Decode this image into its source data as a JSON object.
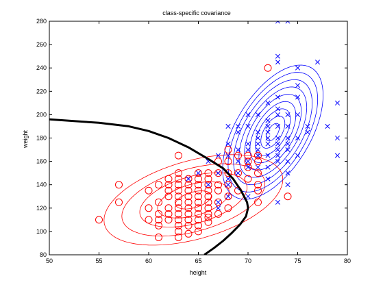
{
  "chart_data": {
    "type": "scatter",
    "title": "class-specific covariance",
    "xlabel": "height",
    "ylabel": "weight",
    "xlim": [
      50,
      80
    ],
    "ylim": [
      80,
      280
    ],
    "xticks": [
      50,
      55,
      60,
      65,
      70,
      75,
      80
    ],
    "yticks": [
      80,
      100,
      120,
      140,
      160,
      180,
      200,
      220,
      240,
      260,
      280
    ],
    "grid": false,
    "legend": "none",
    "colors": {
      "female": "#ff0000",
      "male": "#0000ff",
      "boundary": "#000000"
    },
    "series": [
      {
        "marker": "circle",
        "color": "#ff0000",
        "points": [
          [
            55,
            110
          ],
          [
            57,
            125
          ],
          [
            57,
            140
          ],
          [
            60,
            110
          ],
          [
            60,
            120
          ],
          [
            60,
            135
          ],
          [
            61,
            95
          ],
          [
            61,
            105
          ],
          [
            61,
            110
          ],
          [
            61,
            115
          ],
          [
            61,
            125
          ],
          [
            61,
            140
          ],
          [
            62,
            110
          ],
          [
            62,
            115
          ],
          [
            62,
            120
          ],
          [
            62,
            130
          ],
          [
            62,
            135
          ],
          [
            62,
            140
          ],
          [
            62,
            145
          ],
          [
            63,
            95
          ],
          [
            63,
            100
          ],
          [
            63,
            105
          ],
          [
            63,
            110
          ],
          [
            63,
            115
          ],
          [
            63,
            120
          ],
          [
            63,
            125
          ],
          [
            63,
            130
          ],
          [
            63,
            135
          ],
          [
            63,
            140
          ],
          [
            63,
            145
          ],
          [
            63,
            150
          ],
          [
            63,
            165
          ],
          [
            64,
            98
          ],
          [
            64,
            105
          ],
          [
            64,
            110
          ],
          [
            64,
            115
          ],
          [
            64,
            120
          ],
          [
            64,
            125
          ],
          [
            64,
            130
          ],
          [
            64,
            135
          ],
          [
            64,
            140
          ],
          [
            64,
            145
          ],
          [
            65,
            100
          ],
          [
            65,
            105
          ],
          [
            65,
            110
          ],
          [
            65,
            115
          ],
          [
            65,
            120
          ],
          [
            65,
            125
          ],
          [
            65,
            130
          ],
          [
            65,
            135
          ],
          [
            65,
            140
          ],
          [
            65,
            145
          ],
          [
            65,
            150
          ],
          [
            66,
            108
          ],
          [
            66,
            112
          ],
          [
            66,
            115
          ],
          [
            66,
            120
          ],
          [
            66,
            125
          ],
          [
            66,
            130
          ],
          [
            66,
            135
          ],
          [
            66,
            140
          ],
          [
            66,
            145
          ],
          [
            66,
            150
          ],
          [
            67,
            115
          ],
          [
            67,
            125
          ],
          [
            67,
            135
          ],
          [
            67,
            140
          ],
          [
            67,
            150
          ],
          [
            67,
            160
          ],
          [
            68,
            120
          ],
          [
            68,
            130
          ],
          [
            68,
            140
          ],
          [
            68,
            150
          ],
          [
            68,
            160
          ],
          [
            68,
            170
          ],
          [
            69,
            135
          ],
          [
            69,
            150
          ],
          [
            69,
            165
          ],
          [
            70,
            145
          ],
          [
            70,
            155
          ],
          [
            70,
            160
          ],
          [
            70,
            165
          ],
          [
            71,
            125
          ],
          [
            71,
            135
          ],
          [
            71,
            140
          ],
          [
            71,
            150
          ],
          [
            71,
            160
          ],
          [
            71,
            165
          ],
          [
            72,
            240
          ],
          [
            74,
            130
          ]
        ]
      },
      {
        "marker": "x",
        "color": "#0000ff",
        "points": [
          [
            64,
            145
          ],
          [
            65,
            150
          ],
          [
            66,
            140
          ],
          [
            66,
            160
          ],
          [
            67,
            120
          ],
          [
            67,
            125
          ],
          [
            67,
            150
          ],
          [
            67,
            165
          ],
          [
            68,
            130
          ],
          [
            68,
            140
          ],
          [
            68,
            145
          ],
          [
            68,
            165
          ],
          [
            68,
            175
          ],
          [
            68,
            190
          ],
          [
            69,
            150
          ],
          [
            69,
            160
          ],
          [
            69,
            170
          ],
          [
            69,
            185
          ],
          [
            69,
            190
          ],
          [
            70,
            130
          ],
          [
            70,
            155
          ],
          [
            70,
            160
          ],
          [
            70,
            170
          ],
          [
            70,
            175
          ],
          [
            70,
            190
          ],
          [
            70,
            200
          ],
          [
            71,
            155
          ],
          [
            71,
            165
          ],
          [
            71,
            170
          ],
          [
            71,
            175
          ],
          [
            71,
            180
          ],
          [
            71,
            185
          ],
          [
            71,
            200
          ],
          [
            72,
            145
          ],
          [
            72,
            155
          ],
          [
            72,
            165
          ],
          [
            72,
            175
          ],
          [
            72,
            180
          ],
          [
            72,
            185
          ],
          [
            72,
            190
          ],
          [
            72,
            195
          ],
          [
            72,
            210
          ],
          [
            73,
            125
          ],
          [
            73,
            160
          ],
          [
            73,
            165
          ],
          [
            73,
            170
          ],
          [
            73,
            175
          ],
          [
            73,
            180
          ],
          [
            73,
            190
          ],
          [
            73,
            200
          ],
          [
            73,
            205
          ],
          [
            73,
            215
          ],
          [
            73,
            245
          ],
          [
            73,
            250
          ],
          [
            73,
            280
          ],
          [
            74,
            140
          ],
          [
            74,
            150
          ],
          [
            74,
            160
          ],
          [
            74,
            170
          ],
          [
            74,
            175
          ],
          [
            74,
            180
          ],
          [
            74,
            190
          ],
          [
            74,
            200
          ],
          [
            74,
            280
          ],
          [
            75,
            165
          ],
          [
            75,
            180
          ],
          [
            75,
            200
          ],
          [
            75,
            215
          ],
          [
            75,
            225
          ],
          [
            75,
            240
          ],
          [
            76,
            185
          ],
          [
            76,
            190
          ],
          [
            77,
            245
          ],
          [
            78,
            190
          ],
          [
            79,
            165
          ],
          [
            79,
            180
          ],
          [
            79,
            210
          ]
        ]
      }
    ],
    "ellipses": [
      {
        "color": "#ff0000",
        "center": [
          64.5,
          127
        ],
        "scales": [
          0.5,
          1.0,
          1.5,
          2.0,
          2.5
        ],
        "sd": [
          3.6,
          15.5
        ],
        "rho": 0.45
      },
      {
        "color": "#0000ff",
        "center": [
          72.5,
          185
        ],
        "scales": [
          0.3,
          0.55,
          0.8,
          1.05,
          1.3,
          1.55,
          1.8,
          2.05,
          2.3
        ],
        "sd": [
          2.2,
          25
        ],
        "rho": 0.55
      }
    ],
    "decision_boundary": [
      [
        50,
        196
      ],
      [
        55,
        193
      ],
      [
        58,
        190
      ],
      [
        60,
        186
      ],
      [
        62,
        180
      ],
      [
        64,
        172
      ],
      [
        66,
        162
      ],
      [
        67.5,
        154
      ],
      [
        68.5,
        145
      ],
      [
        69.3,
        135
      ],
      [
        69.9,
        125
      ],
      [
        70,
        120
      ],
      [
        69.8,
        113
      ],
      [
        69.2,
        106
      ],
      [
        68.4,
        99
      ],
      [
        67.5,
        92
      ],
      [
        66.6,
        86
      ],
      [
        65.6,
        80
      ]
    ]
  }
}
